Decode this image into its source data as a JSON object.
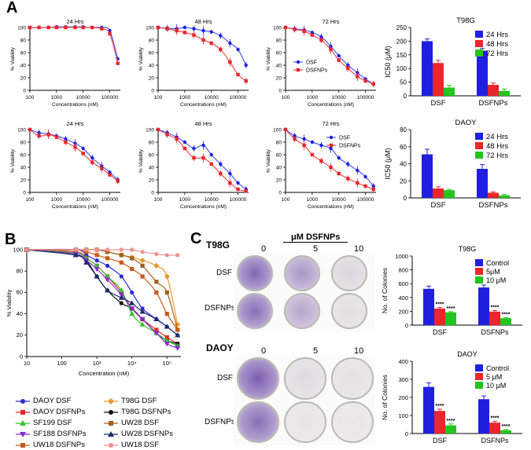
{
  "panels": {
    "a": "A",
    "b": "B",
    "c": "C"
  },
  "colors": {
    "blue": "#1f1fe0",
    "red": "#e8262c",
    "green": "#22c41e",
    "line_blue": "#4a5cf0",
    "line_red": "#f05050"
  },
  "chart_data": [
    {
      "type": "line",
      "title": "24 Hrs",
      "xlabel": "Concentrations (nM)",
      "ylabel": "% Viability",
      "x_scale": "log",
      "xticks": [
        "100",
        "1000",
        "10000",
        "100000"
      ],
      "yticks": [
        "0",
        "20",
        "40",
        "60",
        "80",
        "100"
      ],
      "series": [
        {
          "name": "DSF",
          "color": "#1f1fe0",
          "x": [
            100,
            220,
            500,
            1000,
            2200,
            5000,
            10000,
            22000,
            50000,
            100000,
            200000
          ],
          "y": [
            100,
            100,
            100,
            101,
            101,
            101,
            101,
            100,
            100,
            95,
            50
          ]
        },
        {
          "name": "DSFNPs",
          "color": "#e8262c",
          "x": [
            100,
            220,
            500,
            1000,
            2200,
            5000,
            10000,
            22000,
            50000,
            100000,
            200000
          ],
          "y": [
            100,
            100,
            100,
            100,
            100,
            100,
            100,
            100,
            98,
            90,
            43
          ]
        }
      ]
    },
    {
      "type": "line",
      "title": "48 Hrs",
      "xlabel": "Concentrations (nM)",
      "ylabel": "% Viability",
      "x_scale": "log",
      "xticks": [
        "100",
        "1000",
        "10000",
        "100000"
      ],
      "yticks": [
        "0",
        "20",
        "40",
        "60",
        "80",
        "100"
      ],
      "series": [
        {
          "name": "DSF",
          "color": "#1f1fe0",
          "x": [
            100,
            220,
            500,
            1000,
            2200,
            5000,
            10000,
            22000,
            50000,
            100000,
            200000
          ],
          "y": [
            100,
            99,
            98,
            100,
            98,
            95,
            93,
            87,
            75,
            65,
            40
          ]
        },
        {
          "name": "DSFNPs",
          "color": "#e8262c",
          "x": [
            100,
            220,
            500,
            1000,
            2200,
            5000,
            10000,
            22000,
            50000,
            100000,
            200000
          ],
          "y": [
            100,
            98,
            95,
            92,
            88,
            80,
            75,
            65,
            45,
            25,
            15
          ]
        }
      ]
    },
    {
      "type": "line",
      "title": "72 Hrs",
      "xlabel": "Concentrations (nM)",
      "ylabel": "% Viability",
      "x_scale": "log",
      "xticks": [
        "100",
        "1000",
        "10000",
        "100000"
      ],
      "yticks": [
        "0",
        "20",
        "40",
        "60",
        "80",
        "100"
      ],
      "legend": "center-left",
      "series": [
        {
          "name": "DSF",
          "color": "#1f1fe0",
          "x": [
            100,
            220,
            500,
            1000,
            2200,
            5000,
            10000,
            22000,
            50000,
            100000,
            200000
          ],
          "y": [
            100,
            98,
            96,
            92,
            85,
            70,
            55,
            40,
            28,
            18,
            10
          ]
        },
        {
          "name": "DSFNPs",
          "color": "#e8262c",
          "x": [
            100,
            220,
            500,
            1000,
            2200,
            5000,
            10000,
            22000,
            50000,
            100000,
            200000
          ],
          "y": [
            100,
            97,
            94,
            88,
            80,
            65,
            48,
            35,
            22,
            15,
            10
          ]
        }
      ]
    },
    {
      "type": "bar",
      "title": "T98G",
      "ylabel": "IC50 (μM)",
      "yticks": [
        "0",
        "50",
        "100",
        "150",
        "200",
        "250"
      ],
      "ylim": [
        0,
        250
      ],
      "categories": [
        "DSF",
        "DSFNPs"
      ],
      "legend": "top-right",
      "series": [
        {
          "name": "24 Hrs",
          "color": "#1f1fe0",
          "values": [
            200,
            165
          ],
          "errors": [
            8,
            8
          ]
        },
        {
          "name": "48 Hrs",
          "color": "#e8262c",
          "values": [
            120,
            40
          ],
          "errors": [
            10,
            7
          ]
        },
        {
          "name": "72 Hrs",
          "color": "#22c41e",
          "values": [
            30,
            18
          ],
          "errors": [
            8,
            7
          ]
        }
      ]
    },
    {
      "type": "line",
      "title": "24 Hrs",
      "xlabel": "Concentrations (nM)",
      "ylabel": "% Viability",
      "x_scale": "log",
      "xticks": [
        "100",
        "1000",
        "10000",
        "100000"
      ],
      "yticks": [
        "0",
        "20",
        "40",
        "60",
        "80",
        "100"
      ],
      "series": [
        {
          "name": "DSF",
          "color": "#1f1fe0",
          "x": [
            100,
            220,
            500,
            1000,
            2200,
            5000,
            10000,
            22000,
            50000,
            100000,
            200000
          ],
          "y": [
            100,
            95,
            93,
            90,
            85,
            78,
            70,
            55,
            42,
            32,
            20
          ]
        },
        {
          "name": "DSFNPs",
          "color": "#e8262c",
          "x": [
            100,
            220,
            500,
            1000,
            2200,
            5000,
            10000,
            22000,
            50000,
            100000,
            200000
          ],
          "y": [
            100,
            90,
            92,
            88,
            80,
            72,
            62,
            48,
            38,
            28,
            18
          ]
        }
      ]
    },
    {
      "type": "line",
      "title": "48 Hrs",
      "xlabel": "Concentrations (nM)",
      "ylabel": "% Viability",
      "x_scale": "log",
      "xticks": [
        "100",
        "1000",
        "10000",
        "100000"
      ],
      "yticks": [
        "0",
        "20",
        "40",
        "60",
        "80",
        "100"
      ],
      "series": [
        {
          "name": "DSF",
          "color": "#1f1fe0",
          "x": [
            100,
            220,
            500,
            1000,
            2200,
            5000,
            10000,
            22000,
            50000,
            100000,
            200000
          ],
          "y": [
            100,
            95,
            88,
            80,
            70,
            75,
            60,
            45,
            30,
            15,
            5
          ]
        },
        {
          "name": "DSFNPs",
          "color": "#e8262c",
          "x": [
            100,
            220,
            500,
            1000,
            2200,
            5000,
            10000,
            22000,
            50000,
            100000,
            200000
          ],
          "y": [
            100,
            92,
            85,
            70,
            55,
            55,
            45,
            30,
            15,
            5,
            2
          ]
        }
      ]
    },
    {
      "type": "line",
      "title": "72 Hrs",
      "xlabel": "Concentrations (nM)",
      "ylabel": "% Viability",
      "x_scale": "log",
      "xticks": [
        "100",
        "1000",
        "10000",
        "100000"
      ],
      "yticks": [
        "0",
        "20",
        "40",
        "60",
        "80",
        "100"
      ],
      "legend": "top-right",
      "series": [
        {
          "name": "DSF",
          "color": "#1f1fe0",
          "x": [
            100,
            220,
            500,
            1000,
            2200,
            5000,
            10000,
            22000,
            50000,
            100000,
            200000
          ],
          "y": [
            100,
            90,
            85,
            80,
            75,
            70,
            55,
            45,
            35,
            25,
            10
          ]
        },
        {
          "name": "DSFNPs",
          "color": "#e8262c",
          "x": [
            100,
            220,
            500,
            1000,
            2200,
            5000,
            10000,
            22000,
            50000,
            100000,
            200000
          ],
          "y": [
            100,
            85,
            75,
            60,
            50,
            40,
            30,
            22,
            15,
            10,
            5
          ]
        }
      ]
    },
    {
      "type": "bar",
      "title": "DAOY",
      "ylabel": "IC50 (μM)",
      "yticks": [
        "0",
        "20",
        "40",
        "60",
        "80"
      ],
      "ylim": [
        0,
        80
      ],
      "categories": [
        "DSF",
        "DSFNPs"
      ],
      "legend": "top-right",
      "series": [
        {
          "name": "24 Hrs",
          "color": "#1f1fe0",
          "values": [
            51,
            34
          ],
          "errors": [
            6,
            5
          ]
        },
        {
          "name": "48 Hrs",
          "color": "#e8262c",
          "values": [
            11,
            6
          ],
          "errors": [
            2,
            1
          ]
        },
        {
          "name": "72 Hrs",
          "color": "#22c41e",
          "values": [
            9,
            3
          ],
          "errors": [
            1,
            1
          ]
        }
      ]
    },
    {
      "type": "line",
      "xlabel": "Concentration (nM)",
      "ylabel": "% Viability",
      "x_scale": "log",
      "xticks": [
        "10",
        "100",
        "10³",
        "10⁴",
        "10⁵"
      ],
      "yticks": [
        "0",
        "20",
        "40",
        "60",
        "80",
        "100"
      ],
      "legend": "bottom",
      "series": [
        {
          "name": "DAOY DSF",
          "color": "#2a2ad8",
          "marker": "circle",
          "x": [
            10,
            250,
            500,
            1000,
            2000,
            5000,
            10000,
            20000,
            50000,
            100000,
            200000
          ],
          "y": [
            100,
            100,
            95,
            90,
            85,
            75,
            60,
            45,
            35,
            28,
            20
          ]
        },
        {
          "name": "T98G DSF",
          "color": "#e89a2e",
          "marker": "diamond",
          "x": [
            10,
            250,
            500,
            1000,
            2000,
            5000,
            10000,
            20000,
            50000,
            100000,
            200000
          ],
          "y": [
            100,
            100,
            100,
            100,
            98,
            95,
            93,
            90,
            85,
            75,
            30
          ]
        },
        {
          "name": "DAOY DSFNPs",
          "color": "#e8262c",
          "marker": "square",
          "x": [
            10,
            250,
            500,
            1000,
            2000,
            5000,
            10000,
            20000,
            50000,
            100000,
            200000
          ],
          "y": [
            100,
            98,
            92,
            85,
            75,
            60,
            45,
            35,
            25,
            18,
            12
          ]
        },
        {
          "name": "T98G DSFNPs",
          "color": "#111111",
          "marker": "circle",
          "x": [
            10,
            250,
            500,
            1000,
            2000,
            5000,
            10000,
            20000,
            50000,
            100000,
            200000
          ],
          "y": [
            100,
            95,
            90,
            75,
            62,
            50,
            45,
            35,
            22,
            15,
            12
          ]
        },
        {
          "name": "SF199 DSF",
          "color": "#2ec82a",
          "marker": "triangle",
          "x": [
            10,
            250,
            500,
            1000,
            2000,
            5000,
            10000,
            20000,
            50000,
            100000,
            200000
          ],
          "y": [
            100,
            97,
            92,
            85,
            75,
            62,
            40,
            30,
            22,
            15,
            10
          ]
        },
        {
          "name": "UW28 DSF",
          "color": "#a0601a",
          "marker": "square",
          "x": [
            10,
            250,
            500,
            1000,
            2000,
            5000,
            10000,
            20000,
            50000,
            100000,
            200000
          ],
          "y": [
            100,
            100,
            100,
            100,
            98,
            95,
            92,
            85,
            70,
            60,
            25
          ]
        },
        {
          "name": "SF188 DSFNPs",
          "color": "#8a2ad0",
          "marker": "triangle-down",
          "x": [
            10,
            250,
            500,
            1000,
            2000,
            5000,
            10000,
            20000,
            50000,
            100000,
            200000
          ],
          "y": [
            100,
            96,
            90,
            82,
            72,
            58,
            45,
            35,
            22,
            12,
            8
          ]
        },
        {
          "name": "UW28 DSFNPs",
          "color": "#1a2a6e",
          "marker": "triangle",
          "x": [
            10,
            250,
            500,
            1000,
            2000,
            5000,
            10000,
            20000,
            50000,
            100000,
            200000
          ],
          "y": [
            100,
            95,
            88,
            75,
            62,
            55,
            50,
            42,
            35,
            28,
            20
          ]
        },
        {
          "name": "UW18 DSFNPs",
          "color": "#c85a1a",
          "marker": "square",
          "x": [
            10,
            250,
            500,
            1000,
            2000,
            5000,
            10000,
            20000,
            50000,
            100000,
            200000
          ],
          "y": [
            100,
            100,
            98,
            95,
            92,
            88,
            82,
            75,
            60,
            40,
            25
          ]
        },
        {
          "name": "UW18 DSF",
          "color": "#f09090",
          "marker": "circle",
          "x": [
            10,
            250,
            500,
            1000,
            2000,
            5000,
            10000,
            20000,
            50000,
            100000,
            200000
          ],
          "y": [
            100,
            100,
            100,
            100,
            100,
            100,
            100,
            98,
            96,
            95,
            95
          ]
        }
      ]
    },
    {
      "type": "bar",
      "title": "T98G",
      "ylabel": "No. of Colonies",
      "yticks": [
        "0",
        "200",
        "400",
        "600",
        "800",
        "1000"
      ],
      "ylim": [
        0,
        1000
      ],
      "categories": [
        "DSF",
        "DSFNPs"
      ],
      "legend": "top-right",
      "series": [
        {
          "name": "Control",
          "color": "#1f1fe0",
          "values": [
            525,
            545
          ],
          "errors": [
            40,
            35
          ]
        },
        {
          "name": "5μM",
          "color": "#e8262c",
          "values": [
            240,
            195
          ],
          "errors": [
            15,
            15
          ]
        },
        {
          "name": "10 μM",
          "color": "#22c41e",
          "values": [
            185,
            100
          ],
          "errors": [
            10,
            8
          ]
        }
      ],
      "annotations": [
        "****",
        "****",
        "****",
        "****"
      ]
    },
    {
      "type": "bar",
      "title": "DAOY",
      "ylabel": "No. of Colonies",
      "yticks": [
        "0",
        "100",
        "200",
        "300",
        "400"
      ],
      "ylim": [
        0,
        400
      ],
      "categories": [
        "DSF",
        "DSFNPs"
      ],
      "legend": "top-right",
      "series": [
        {
          "name": "Control",
          "color": "#1f1fe0",
          "values": [
            258,
            190
          ],
          "errors": [
            22,
            18
          ]
        },
        {
          "name": "5 μM",
          "color": "#e8262c",
          "values": [
            125,
            60
          ],
          "errors": [
            10,
            8
          ]
        },
        {
          "name": "10 μM",
          "color": "#22c41e",
          "values": [
            45,
            18
          ],
          "errors": [
            8,
            4
          ]
        }
      ],
      "annotations": [
        "****",
        "****",
        "****",
        "****"
      ]
    }
  ],
  "colony": {
    "header": "μM DSFNPs",
    "t98g": {
      "label": "T98G",
      "doses": [
        "0",
        "5",
        "10"
      ],
      "rows": [
        "DSF",
        "DSFNPs"
      ]
    },
    "daoy": {
      "label": "DAOY",
      "doses": [
        "0",
        "5",
        "10"
      ],
      "rows": [
        "DSF",
        "DSFNPs"
      ]
    }
  }
}
